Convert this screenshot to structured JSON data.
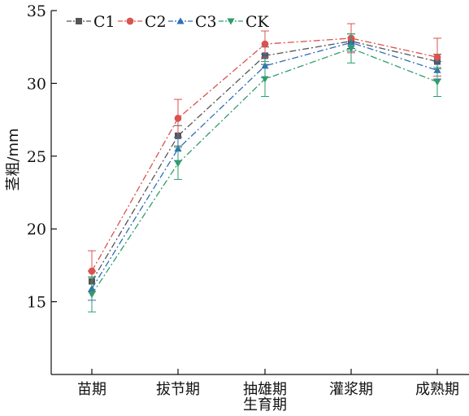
{
  "chart_data": {
    "type": "line",
    "title": "",
    "xlabel": "生育期",
    "ylabel": "茎粗/mm",
    "categories": [
      "苗期",
      "拔节期",
      "抽雄期",
      "灌浆期",
      "成熟期"
    ],
    "ylim": [
      10,
      35
    ],
    "yticks": [
      15,
      20,
      25,
      30,
      35
    ],
    "legend_position": "top-left",
    "series": [
      {
        "name": "C1",
        "color": "#555555",
        "marker": "square",
        "values": [
          16.4,
          26.4,
          31.9,
          32.9,
          31.5
        ],
        "errors": [
          0.7,
          0.7,
          0.6,
          0.5,
          0.5
        ]
      },
      {
        "name": "C2",
        "color": "#d9534f",
        "marker": "circle",
        "values": [
          17.1,
          27.6,
          32.7,
          33.1,
          31.8
        ],
        "errors": [
          1.4,
          1.3,
          0.9,
          1.0,
          1.3
        ]
      },
      {
        "name": "C3",
        "color": "#2e6fb7",
        "marker": "triangle-up",
        "values": [
          15.9,
          25.5,
          31.2,
          32.8,
          30.9
        ],
        "errors": [
          0.8,
          0.8,
          0.8,
          0.6,
          0.6
        ]
      },
      {
        "name": "CK",
        "color": "#2e9e6b",
        "marker": "triangle-down",
        "values": [
          15.5,
          24.5,
          30.3,
          32.4,
          30.1
        ],
        "errors": [
          1.2,
          1.1,
          1.2,
          1.0,
          1.0
        ]
      }
    ]
  }
}
